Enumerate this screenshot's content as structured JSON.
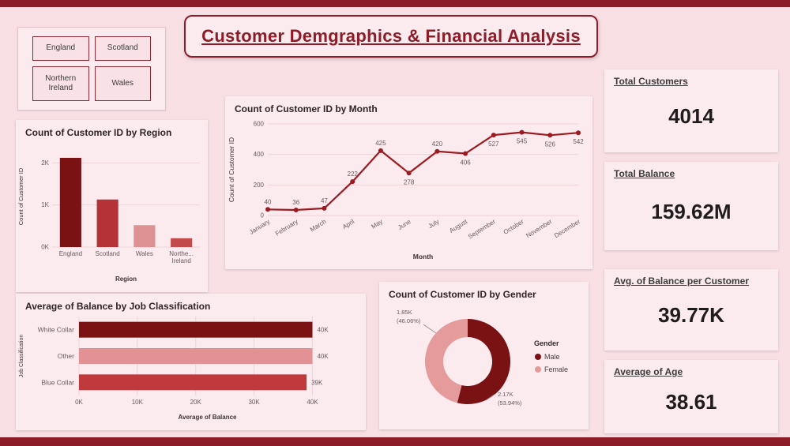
{
  "title": "Customer Demgraphics & Financial Analysis",
  "theme": {
    "background": "#f7dfe4",
    "card_background": "#fbeaee",
    "accent_dark_red": "#8c1c27",
    "grid_color": "#eed4d9"
  },
  "slicer": {
    "items": [
      "England",
      "Scotland",
      "Northern Ireland",
      "Wales"
    ]
  },
  "kpis": [
    {
      "label": "Total Customers",
      "value": "4014"
    },
    {
      "label": "Total Balance",
      "value": "159.62M"
    },
    {
      "label": "Avg. of Balance per Customer",
      "value": "39.77K"
    },
    {
      "label": "Average of Age",
      "value": "38.61"
    }
  ],
  "chart_data": [
    {
      "type": "bar",
      "title": "Count of Customer ID by Region",
      "categories": [
        "England",
        "Scotland",
        "Wales",
        "Northe... Ireland"
      ],
      "category_display": [
        [
          "England"
        ],
        [
          "Scotland"
        ],
        [
          "Wales"
        ],
        [
          "Northe...",
          "Ireland"
        ]
      ],
      "values": [
        2120,
        1130,
        520,
        210
      ],
      "bar_colors": [
        "#7a1113",
        "#b53336",
        "#dd9193",
        "#c14a4c"
      ],
      "xlabel": "Region",
      "ylabel": "Count of Customer ID",
      "ymax": 2400,
      "yticks": [
        0,
        1000,
        2000
      ],
      "ytick_labels": [
        "0K",
        "1K",
        "2K"
      ]
    },
    {
      "type": "line",
      "title": "Count of Customer ID by Month",
      "x": [
        "January",
        "February",
        "March",
        "April",
        "May",
        "June",
        "July",
        "August",
        "September",
        "October",
        "November",
        "December"
      ],
      "values": [
        40,
        36,
        47,
        222,
        425,
        278,
        420,
        406,
        527,
        545,
        526,
        542
      ],
      "label_positions": [
        "above",
        "above",
        "above",
        "above",
        "above",
        "below",
        "above",
        "below",
        "below",
        "below",
        "below",
        "below"
      ],
      "xlabel": "Month",
      "ylabel": "Count of Customer ID",
      "ymax": 600,
      "yticks": [
        0,
        200,
        400,
        600
      ],
      "line_color": "#9d1b20"
    },
    {
      "type": "hbar",
      "title": "Average of Balance by Job Classification",
      "categories": [
        "White Collar",
        "Other",
        "Blue Collar"
      ],
      "values": [
        40000,
        40000,
        39000
      ],
      "value_labels": [
        "40K",
        "40K",
        "39K"
      ],
      "bar_colors": [
        "#7a1113",
        "#e29295",
        "#c0393d"
      ],
      "xlabel": "Average of Balance",
      "ylabel": "Job Classification",
      "xmax": 44000,
      "xticks": [
        0,
        10000,
        20000,
        30000,
        40000
      ],
      "xtick_labels": [
        "0K",
        "10K",
        "20K",
        "30K",
        "40K"
      ]
    },
    {
      "type": "donut",
      "title": "Count of Customer ID by Gender",
      "legend_title": "Gender",
      "slices": [
        {
          "name": "Male",
          "value": 53.94,
          "label_line1": "2.17K",
          "label_line2": "(53.94%)",
          "color": "#7a1113"
        },
        {
          "name": "Female",
          "value": 46.06,
          "label_line1": "1.85K",
          "label_line2": "(46.06%)",
          "color": "#e59a9b"
        }
      ]
    }
  ]
}
